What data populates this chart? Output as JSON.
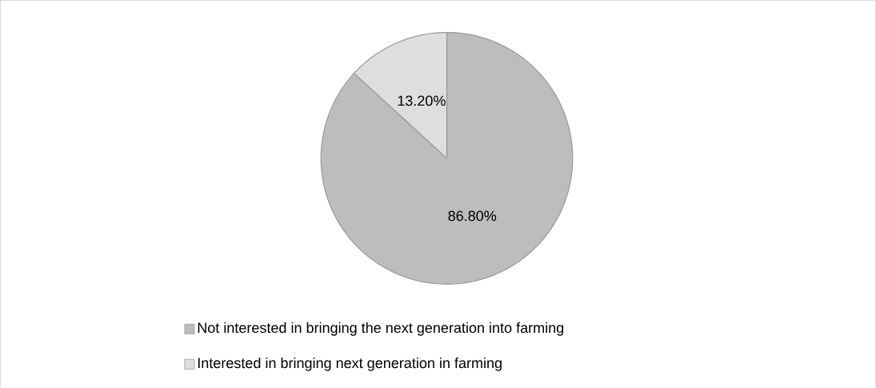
{
  "chart_data": {
    "type": "pie",
    "categories": [
      "Not interested in bringing the next generation into farming",
      "Interested in bringing next generation in farming"
    ],
    "values": [
      86.8,
      13.2
    ],
    "value_labels": [
      "86.80%",
      "13.20%"
    ],
    "colors": [
      "#bdbdbd",
      "#dedede"
    ],
    "legend": "bottom"
  }
}
